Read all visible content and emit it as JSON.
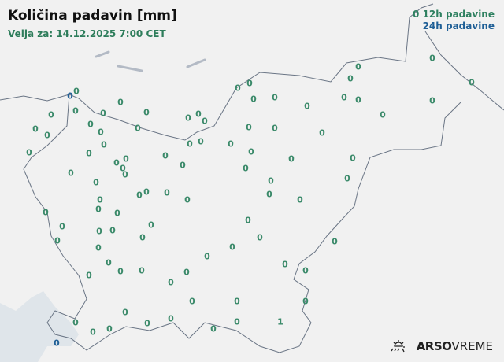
{
  "header": {
    "title": "Količina padavin [mm]",
    "valid": "Velja za: 14.12.2025 7:00 CET"
  },
  "legend": {
    "h12_marker": "0",
    "h12_label": "12h padavine",
    "h24_label": "24h padavine",
    "h12_color": "#3b8a6a",
    "h24_color": "#1f5f96"
  },
  "brand": {
    "bold": "ARSO",
    "light": "VREME",
    "icon": "sun-rain-icon"
  },
  "colors": {
    "land": "#f1f1f1",
    "sea": "#dfe5ea",
    "border": "#6a7585"
  },
  "stations": [
    {
      "v": "0",
      "t": "h12"
    },
    {
      "v": "0",
      "t": "h24"
    },
    {
      "v": "0",
      "t": "h12"
    },
    {
      "v": "0",
      "t": "h12"
    },
    {
      "v": "0",
      "t": "h12"
    },
    {
      "v": "0",
      "t": "h12"
    },
    {
      "v": "0",
      "t": "h12"
    },
    {
      "v": "0",
      "t": "h12"
    },
    {
      "v": "0",
      "t": "h12"
    },
    {
      "v": "0",
      "t": "h12"
    },
    {
      "v": "0",
      "t": "h12"
    },
    {
      "v": "0",
      "t": "h12"
    },
    {
      "v": "0",
      "t": "h12"
    },
    {
      "v": "0",
      "t": "h12"
    },
    {
      "v": "0",
      "t": "h12"
    },
    {
      "v": "0",
      "t": "h12"
    },
    {
      "v": "0",
      "t": "h12"
    },
    {
      "v": "0",
      "t": "h12"
    },
    {
      "v": "0",
      "t": "h12"
    },
    {
      "v": "0",
      "t": "h12"
    },
    {
      "v": "0",
      "t": "h12"
    },
    {
      "v": "0",
      "t": "h12"
    },
    {
      "v": "0",
      "t": "h12"
    },
    {
      "v": "0",
      "t": "h12"
    },
    {
      "v": "0",
      "t": "h12"
    },
    {
      "v": "0",
      "t": "h12"
    },
    {
      "v": "0",
      "t": "h12"
    },
    {
      "v": "0",
      "t": "h12"
    },
    {
      "v": "0",
      "t": "h12"
    },
    {
      "v": "0",
      "t": "h12"
    },
    {
      "v": "0",
      "t": "h12"
    },
    {
      "v": "0",
      "t": "h12"
    },
    {
      "v": "0",
      "t": "h12"
    },
    {
      "v": "0",
      "t": "h12"
    },
    {
      "v": "0",
      "t": "h12"
    },
    {
      "v": "0",
      "t": "h12"
    },
    {
      "v": "0",
      "t": "h12"
    },
    {
      "v": "0",
      "t": "h12"
    },
    {
      "v": "0",
      "t": "h12"
    },
    {
      "v": "0",
      "t": "h12"
    },
    {
      "v": "0",
      "t": "h12"
    },
    {
      "v": "0",
      "t": "h12"
    },
    {
      "v": "0",
      "t": "h12"
    },
    {
      "v": "0",
      "t": "h12"
    },
    {
      "v": "0",
      "t": "h12"
    },
    {
      "v": "0",
      "t": "h12"
    },
    {
      "v": "0",
      "t": "h12"
    },
    {
      "v": "0",
      "t": "h12"
    },
    {
      "v": "0",
      "t": "h12"
    },
    {
      "v": "0",
      "t": "h12"
    },
    {
      "v": "0",
      "t": "h12"
    },
    {
      "v": "0",
      "t": "h12"
    },
    {
      "v": "0",
      "t": "h12"
    },
    {
      "v": "0",
      "t": "h12"
    },
    {
      "v": "0",
      "t": "h12"
    },
    {
      "v": "0",
      "t": "h12"
    },
    {
      "v": "0",
      "t": "h12"
    },
    {
      "v": "0",
      "t": "h12"
    },
    {
      "v": "0",
      "t": "h12"
    },
    {
      "v": "0",
      "t": "h12"
    },
    {
      "v": "0",
      "t": "h12"
    },
    {
      "v": "0",
      "t": "h12"
    },
    {
      "v": "0",
      "t": "h12"
    },
    {
      "v": "0",
      "t": "h12"
    },
    {
      "v": "0",
      "t": "h12"
    },
    {
      "v": "0",
      "t": "h12"
    },
    {
      "v": "0",
      "t": "h12"
    },
    {
      "v": "0",
      "t": "h12"
    },
    {
      "v": "0",
      "t": "h12"
    },
    {
      "v": "0",
      "t": "h12"
    },
    {
      "v": "0",
      "t": "h12"
    },
    {
      "v": "0",
      "t": "h12"
    },
    {
      "v": "0",
      "t": "h12"
    },
    {
      "v": "0",
      "t": "h12"
    },
    {
      "v": "0",
      "t": "h12"
    },
    {
      "v": "0",
      "t": "h12"
    },
    {
      "v": "0",
      "t": "h12"
    },
    {
      "v": "0",
      "t": "h12"
    },
    {
      "v": "0",
      "t": "h12"
    },
    {
      "v": "0",
      "t": "h12"
    },
    {
      "v": "0",
      "t": "h12"
    },
    {
      "v": "0",
      "t": "h12"
    },
    {
      "v": "0",
      "t": "h12"
    },
    {
      "v": "0",
      "t": "h12"
    },
    {
      "v": "0",
      "t": "h12"
    },
    {
      "v": "0",
      "t": "h12"
    },
    {
      "v": "0",
      "t": "h12"
    },
    {
      "v": "0",
      "t": "h12"
    },
    {
      "v": "0",
      "t": "h12"
    },
    {
      "v": "0",
      "t": "h12"
    },
    {
      "v": "1",
      "t": "h12"
    },
    {
      "v": "0",
      "t": "h12"
    },
    {
      "v": "0",
      "t": "h24"
    },
    {
      "v": "0",
      "t": "h12"
    }
  ]
}
